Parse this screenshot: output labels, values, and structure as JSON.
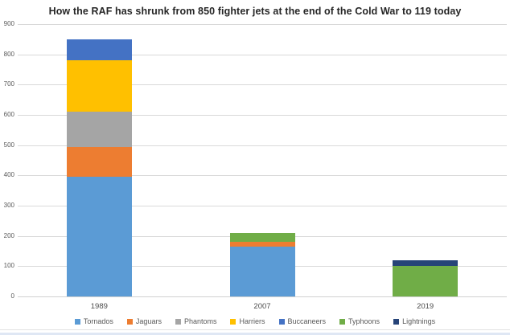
{
  "chart_data": {
    "type": "bar",
    "subtype": "stacked-vertical",
    "title": "How the RAF has shrunk from 850 fighter jets at the end of the Cold War to 119 today",
    "xlabel": "",
    "ylabel": "",
    "categories": [
      "1989",
      "2007",
      "2019"
    ],
    "series": [
      {
        "name": "Tornados",
        "color": "#5B9BD5",
        "values": [
          395,
          165,
          0
        ]
      },
      {
        "name": "Jaguars",
        "color": "#ED7D31",
        "values": [
          100,
          15,
          0
        ]
      },
      {
        "name": "Phantoms",
        "color": "#A5A5A5",
        "values": [
          115,
          0,
          0
        ]
      },
      {
        "name": "Harriers",
        "color": "#FFC000",
        "values": [
          170,
          0,
          0
        ]
      },
      {
        "name": "Buccaneers",
        "color": "#4472C4",
        "values": [
          70,
          0,
          0
        ]
      },
      {
        "name": "Typhoons",
        "color": "#70AD47",
        "values": [
          0,
          30,
          102
        ]
      },
      {
        "name": "Lightnings",
        "color": "#264478",
        "values": [
          0,
          0,
          17
        ]
      }
    ],
    "ylim": [
      0,
      900
    ],
    "yticks": [
      0,
      100,
      200,
      300,
      400,
      500,
      600,
      700,
      800,
      900
    ],
    "grid": true,
    "legend_position": "bottom",
    "colors": {
      "gridline": "#d9d9d9",
      "tick_label": "#595959",
      "title_text": "#262626"
    }
  }
}
